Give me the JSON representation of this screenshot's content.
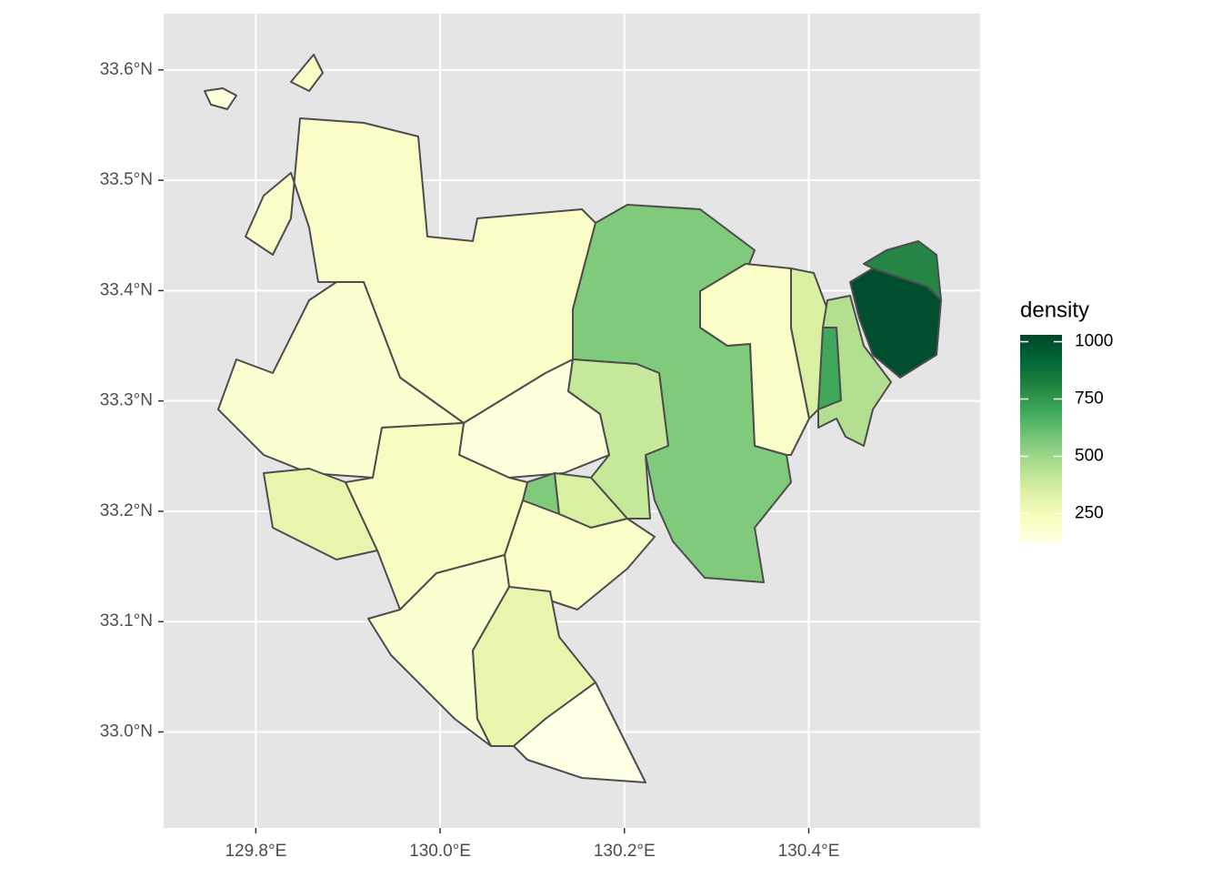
{
  "chart_data": {
    "type": "choropleth",
    "xticks": [
      {
        "value": 129.8,
        "label": "129.8°E"
      },
      {
        "value": 130.0,
        "label": "130.0°E"
      },
      {
        "value": 130.2,
        "label": "130.2°E"
      },
      {
        "value": 130.4,
        "label": "130.4°E"
      }
    ],
    "yticks": [
      {
        "value": 33.0,
        "label": "33.0°N"
      },
      {
        "value": 33.1,
        "label": "33.1°N"
      },
      {
        "value": 33.2,
        "label": "33.2°N"
      },
      {
        "value": 33.3,
        "label": "33.3°N"
      },
      {
        "value": 33.4,
        "label": "33.4°N"
      },
      {
        "value": 33.5,
        "label": "33.5°N"
      },
      {
        "value": 33.6,
        "label": "33.6°N"
      }
    ],
    "xlim": [
      129.7,
      130.586
    ],
    "ylim": [
      32.913,
      33.651
    ],
    "grid": true,
    "legend": {
      "title": "density",
      "limits": [
        125,
        1030
      ],
      "ticks": [
        250,
        500,
        750,
        1000
      ],
      "colors": [
        "#ffffe5",
        "#f7fcb9",
        "#d9f0a3",
        "#addd8e",
        "#78c679",
        "#41ab5d",
        "#238443",
        "#006837",
        "#004529"
      ]
    },
    "values": [
      200,
      180,
      150,
      560,
      400,
      560,
      350,
      300,
      220,
      200,
      180,
      300,
      120,
      200,
      350,
      700,
      450,
      1000,
      800,
      150,
      200
    ]
  }
}
